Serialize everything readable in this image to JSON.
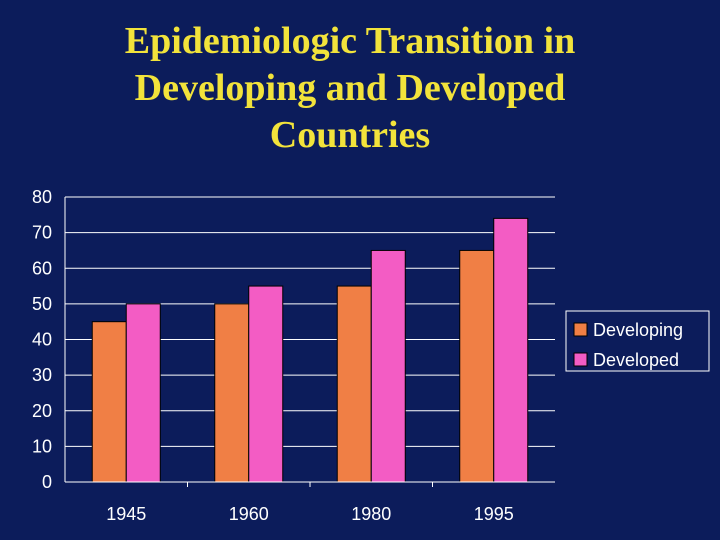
{
  "slide": {
    "title_lines": [
      "Epidemiologic Transition in",
      "Developing and Developed",
      "Countries"
    ]
  },
  "colors": {
    "background": "#0c1c5b",
    "title": "#f2e33b",
    "developing": "#f07f45",
    "developed": "#f35cc4",
    "grid": "#ffffff",
    "text": "#ffffff"
  },
  "chart_data": {
    "type": "bar",
    "categories": [
      "1945",
      "1960",
      "1980",
      "1995"
    ],
    "series": [
      {
        "name": "Developing",
        "values": [
          45,
          50,
          55,
          65
        ]
      },
      {
        "name": "Developed",
        "values": [
          50,
          55,
          65,
          74
        ]
      }
    ],
    "title": "Epidemiologic Transition in Developing and Developed Countries",
    "xlabel": "",
    "ylabel": "",
    "ylim": [
      0,
      80
    ],
    "yticks": [
      0,
      10,
      20,
      30,
      40,
      50,
      60,
      70,
      80
    ],
    "grid": true,
    "legend": "right"
  }
}
